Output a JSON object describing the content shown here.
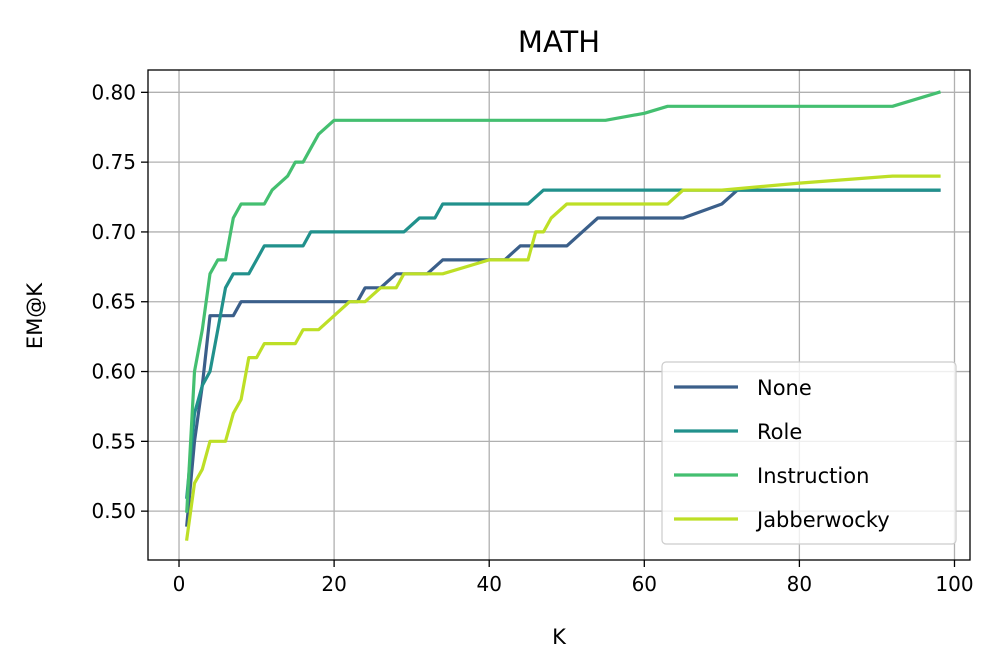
{
  "chart_data": {
    "type": "line",
    "title": "MATH",
    "xlabel": "K",
    "ylabel": "EM@K",
    "xlim": [
      -4,
      102
    ],
    "ylim": [
      0.465,
      0.816
    ],
    "xticks": [
      0,
      20,
      40,
      60,
      80,
      100
    ],
    "xtick_labels": [
      "0",
      "20",
      "40",
      "60",
      "80",
      "100"
    ],
    "yticks": [
      0.5,
      0.55,
      0.6,
      0.65,
      0.7,
      0.75,
      0.8
    ],
    "ytick_labels": [
      "0.50",
      "0.55",
      "0.60",
      "0.65",
      "0.70",
      "0.75",
      "0.80"
    ],
    "grid": true,
    "legend_position": "lower-right",
    "series": [
      {
        "name": "None",
        "color": "#3b5f8a",
        "x": [
          1,
          2,
          3,
          4,
          5,
          6,
          7,
          8,
          10,
          15,
          20,
          23,
          24,
          26,
          28,
          30,
          32,
          34,
          40,
          42,
          44,
          46,
          48,
          50,
          52,
          54,
          56,
          60,
          65,
          70,
          72,
          80,
          90,
          98
        ],
        "y": [
          0.49,
          0.55,
          0.59,
          0.64,
          0.64,
          0.64,
          0.64,
          0.65,
          0.65,
          0.65,
          0.65,
          0.65,
          0.66,
          0.66,
          0.67,
          0.67,
          0.67,
          0.68,
          0.68,
          0.68,
          0.69,
          0.69,
          0.69,
          0.69,
          0.7,
          0.71,
          0.71,
          0.71,
          0.71,
          0.72,
          0.73,
          0.73,
          0.73,
          0.73
        ]
      },
      {
        "name": "Role",
        "color": "#21918c",
        "x": [
          1,
          2,
          3,
          4,
          5,
          6,
          7,
          8,
          9,
          10,
          11,
          12,
          14,
          16,
          17,
          18,
          20,
          25,
          29,
          31,
          33,
          34,
          36,
          40,
          45,
          47,
          50,
          60,
          70,
          80,
          90,
          98
        ],
        "y": [
          0.51,
          0.57,
          0.59,
          0.6,
          0.63,
          0.66,
          0.67,
          0.67,
          0.67,
          0.68,
          0.69,
          0.69,
          0.69,
          0.69,
          0.7,
          0.7,
          0.7,
          0.7,
          0.7,
          0.71,
          0.71,
          0.72,
          0.72,
          0.72,
          0.72,
          0.73,
          0.73,
          0.73,
          0.73,
          0.73,
          0.73,
          0.73
        ]
      },
      {
        "name": "Instruction",
        "color": "#44bf70",
        "x": [
          1,
          2,
          3,
          4,
          5,
          6,
          7,
          8,
          9,
          10,
          11,
          12,
          14,
          15,
          16,
          17,
          18,
          20,
          21,
          25,
          30,
          40,
          50,
          55,
          60,
          63,
          70,
          80,
          90,
          92,
          98
        ],
        "y": [
          0.5,
          0.6,
          0.63,
          0.67,
          0.68,
          0.68,
          0.71,
          0.72,
          0.72,
          0.72,
          0.72,
          0.73,
          0.74,
          0.75,
          0.75,
          0.76,
          0.77,
          0.78,
          0.78,
          0.78,
          0.78,
          0.78,
          0.78,
          0.78,
          0.785,
          0.79,
          0.79,
          0.79,
          0.79,
          0.79,
          0.8
        ]
      },
      {
        "name": "Jabberwocky",
        "color": "#bddf26",
        "x": [
          1,
          2,
          3,
          4,
          5,
          6,
          7,
          8,
          9,
          10,
          11,
          12,
          14,
          15,
          16,
          17,
          18,
          20,
          22,
          24,
          26,
          28,
          29,
          30,
          34,
          40,
          42,
          44,
          45,
          46,
          47,
          48,
          50,
          55,
          60,
          63,
          65,
          70,
          80,
          92,
          98
        ],
        "y": [
          0.48,
          0.52,
          0.53,
          0.55,
          0.55,
          0.55,
          0.57,
          0.58,
          0.61,
          0.61,
          0.62,
          0.62,
          0.62,
          0.62,
          0.63,
          0.63,
          0.63,
          0.64,
          0.65,
          0.65,
          0.66,
          0.66,
          0.67,
          0.67,
          0.67,
          0.68,
          0.68,
          0.68,
          0.68,
          0.7,
          0.7,
          0.71,
          0.72,
          0.72,
          0.72,
          0.72,
          0.73,
          0.73,
          0.735,
          0.74,
          0.74
        ]
      }
    ]
  }
}
